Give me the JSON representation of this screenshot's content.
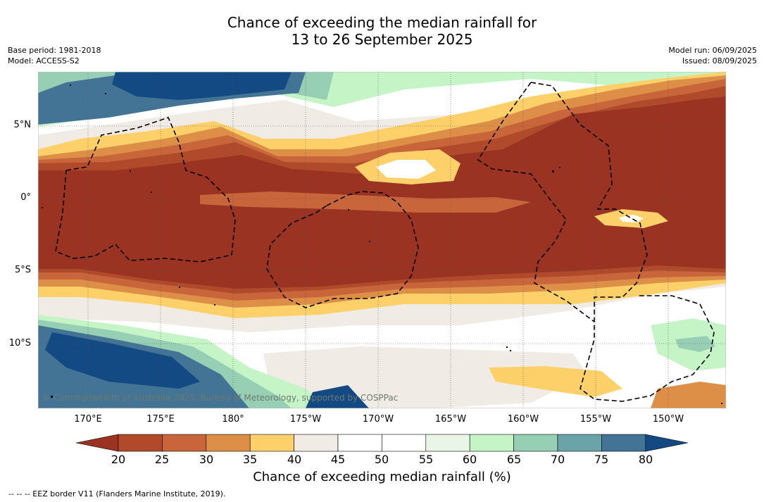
{
  "title_line1": "Chance of exceeding the median rainfall for",
  "title_line2": "13 to 26 September 2025",
  "meta_left": [
    "Base period: 1981-2018",
    "Model: ACCESS-S2"
  ],
  "meta_right": [
    "Model run: 06/09/2025",
    "Issued: 08/09/2025"
  ],
  "map": {
    "lat_labels": [
      "5°N",
      "0°",
      "5°S",
      "10°S"
    ],
    "lon_labels": [
      "170°E",
      "175°E",
      "180°",
      "175°W",
      "170°W",
      "165°W",
      "160°W",
      "155°W",
      "150°W"
    ],
    "copyright": "© Commonwealth of Australia 2025, Bureau of Meteorology, supported by COSPPac",
    "border_color": "#000000"
  },
  "colorbar": {
    "ticks": [
      "20",
      "25",
      "30",
      "35",
      "40",
      "45",
      "50",
      "55",
      "60",
      "65",
      "70",
      "75",
      "80"
    ],
    "colors": [
      "#9a3321",
      "#b14a2b",
      "#c8653a",
      "#dd8f48",
      "#fdd06a",
      "#f0ebe5",
      "#ffffff",
      "#ffffff",
      "#e9f6e7",
      "#c5f4c7",
      "#97cfb5",
      "#6aa3a8",
      "#437496",
      "#144a83"
    ],
    "label": "Chance of exceeding median rainfall (%)"
  },
  "legend_note": "--  --  -- EEZ border V11 (Flanders Marine Institute, 2019)."
}
